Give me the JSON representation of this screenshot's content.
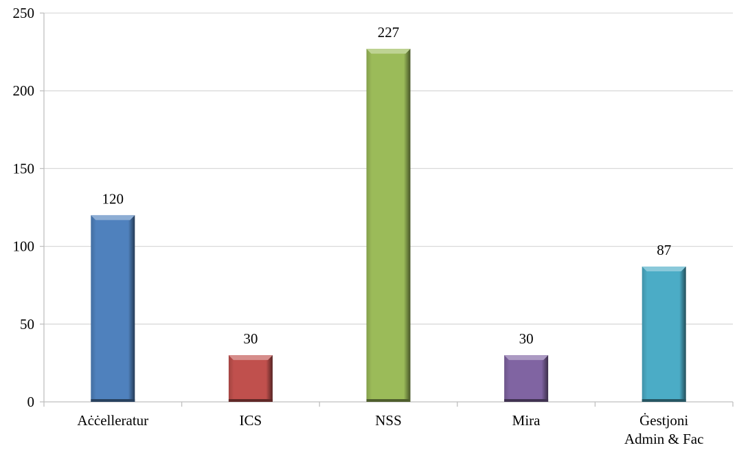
{
  "chart_data": {
    "type": "bar",
    "categories": [
      "Aċċelleratur",
      "ICS",
      "NSS",
      "Mira",
      "Ġestjoni Admin & Fac"
    ],
    "category_lines": [
      [
        "Aċċelleratur"
      ],
      [
        "ICS"
      ],
      [
        "NSS"
      ],
      [
        "Mira"
      ],
      [
        "Ġestjoni",
        "Admin & Fac"
      ]
    ],
    "values": [
      120,
      30,
      227,
      30,
      87
    ],
    "data_labels": [
      "120",
      "30",
      "227",
      "30",
      "87"
    ],
    "colors": [
      "#4f81bd",
      "#c0504d",
      "#9bbb59",
      "#8064a2",
      "#4bacc6"
    ],
    "title": "",
    "xlabel": "",
    "ylabel": "",
    "ylim": [
      0,
      250
    ],
    "yticks": [
      0,
      50,
      100,
      150,
      200,
      250
    ],
    "grid": true,
    "legend": "none"
  }
}
